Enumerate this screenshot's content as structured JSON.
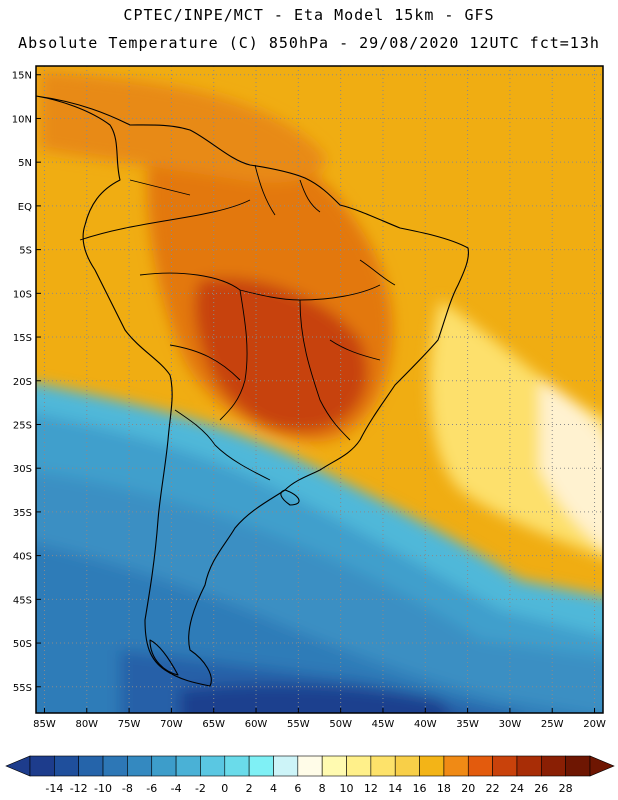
{
  "header": {
    "line1": "CPTEC/INPE/MCT -  Eta Model 15km - GFS",
    "line2": "Absolute Temperature (C) 850hPa - 29/08/2020 12UTC fct=13h"
  },
  "map": {
    "lat_labels": [
      "15N",
      "10N",
      "5N",
      "EQ",
      "5S",
      "10S",
      "15S",
      "20S",
      "25S",
      "30S",
      "35S",
      "40S",
      "45S",
      "50S",
      "55S"
    ],
    "lon_labels": [
      "85W",
      "80W",
      "75W",
      "70W",
      "65W",
      "60W",
      "55W",
      "50W",
      "45W",
      "40W",
      "35W",
      "30W",
      "25W",
      "20W"
    ],
    "lat_values": [
      15,
      10,
      5,
      0,
      -5,
      -10,
      -15,
      -20,
      -25,
      -30,
      -35,
      -40,
      -45,
      -50,
      -55
    ],
    "lon_values": [
      -85,
      -80,
      -75,
      -70,
      -65,
      -60,
      -55,
      -50,
      -45,
      -40,
      -35,
      -30,
      -25,
      -20
    ],
    "extent": {
      "lon_min": -86,
      "lon max": -19,
      "lat_min": -58,
      "lat_max": 16
    },
    "gridlines": true
  },
  "colorbar": {
    "labels": [
      "-14",
      "-12",
      "-10",
      "-8",
      "-6",
      "-4",
      "-2",
      "0",
      "2",
      "4",
      "6",
      "8",
      "10",
      "12",
      "14",
      "16",
      "18",
      "20",
      "22",
      "24",
      "26",
      "28"
    ],
    "colors": [
      "#1d3c8c",
      "#1f4f9c",
      "#2564aa",
      "#2d77b6",
      "#3489c0",
      "#3d9dca",
      "#4ab1d6",
      "#5ac7e2",
      "#6adbea",
      "#7ff0f5",
      "#cdf4f8",
      "#fffce8",
      "#fffab0",
      "#fff08a",
      "#fde26a",
      "#f8cf48",
      "#f3b417",
      "#f08a15",
      "#e35b0d",
      "#c9420b",
      "#a82d06",
      "#8a1f04",
      "#6e1602"
    ]
  }
}
